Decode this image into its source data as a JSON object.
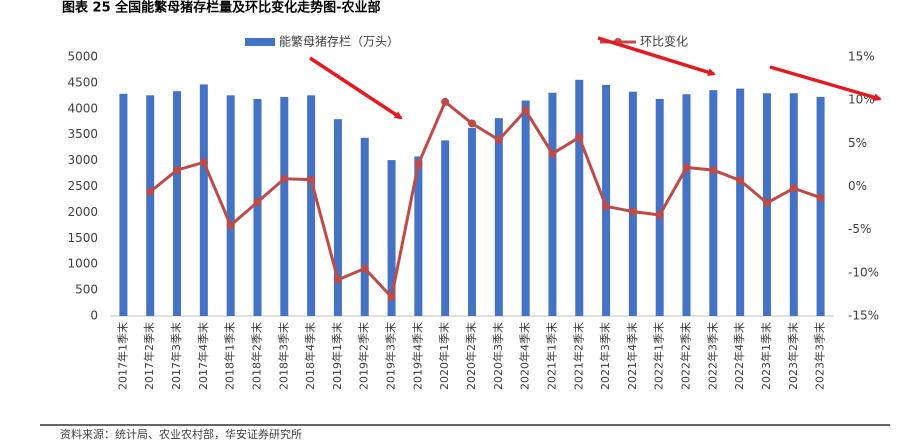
{
  "chart_data": {
    "type": "bar-line",
    "title": "图表 25  全国能繁母猪存栏量及环比变化走势图-农业部",
    "source": "资料来源：统计局、农业农村部，华安证券研究所",
    "categories": [
      "2017年1季末",
      "2017年2季末",
      "2017年3季末",
      "2017年4季末",
      "2018年1季末",
      "2018年2季末",
      "2018年3季末",
      "2018年4季末",
      "2019年1季末",
      "2019年2季末",
      "2019年3季末",
      "2019年4季末",
      "2020年1季末",
      "2020年2季末",
      "2020年3季末",
      "2020年4季末",
      "2021年1季末",
      "2021年2季末",
      "2021年3季末",
      "2021年4季末",
      "2022年1季末",
      "2022年2季末",
      "2022年3季末",
      "2022年4季末",
      "2023年1季末",
      "2023年2季末",
      "2023年3季末"
    ],
    "series": [
      {
        "name": "能繁母猪存栏（万头）",
        "type": "bar",
        "color": "#4472c4",
        "values": [
          4290,
          4260,
          4340,
          4470,
          4260,
          4190,
          4230,
          4260,
          3800,
          3440,
          3010,
          3080,
          3390,
          3630,
          3820,
          4160,
          4310,
          4560,
          4460,
          4330,
          4190,
          4280,
          4360,
          4390,
          4300,
          4300,
          4230
        ]
      },
      {
        "name": "环比变化",
        "type": "line",
        "axis": "y2",
        "color": "#be4b48",
        "values": [
          null,
          -0.6,
          1.9,
          2.8,
          -4.5,
          -1.8,
          0.9,
          0.8,
          -10.8,
          -9.5,
          -12.8,
          2.6,
          9.8,
          7.3,
          5.4,
          8.8,
          3.8,
          5.7,
          -2.3,
          -2.9,
          -3.3,
          2.2,
          1.9,
          0.7,
          -1.9,
          -0.2,
          -1.3
        ]
      }
    ],
    "ylim": [
      0,
      5000
    ],
    "yticks": [
      0,
      500,
      1000,
      1500,
      2000,
      2500,
      3000,
      3500,
      4000,
      4500,
      5000
    ],
    "y2lim": [
      -15,
      15
    ],
    "y2ticks": [
      {
        "value": -15,
        "label": "-15%"
      },
      {
        "value": -10,
        "label": "-10%"
      },
      {
        "value": -5,
        "label": "-5%"
      },
      {
        "value": 0,
        "label": "0%"
      },
      {
        "value": 5,
        "label": "5%"
      },
      {
        "value": 10,
        "label": "10%"
      },
      {
        "value": 15,
        "label": "15%"
      }
    ],
    "grid": false
  }
}
